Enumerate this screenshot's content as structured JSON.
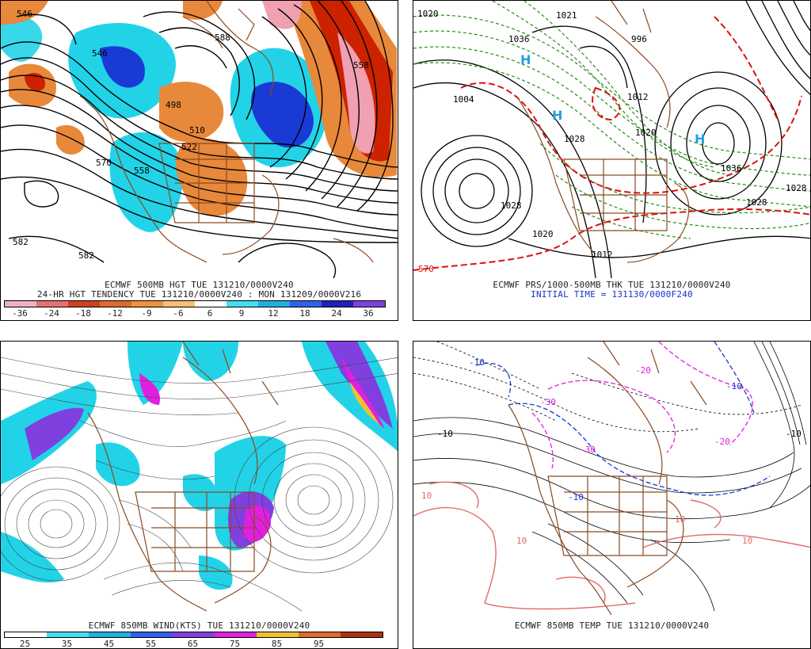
{
  "colors": {
    "coast": "#8a4a20",
    "contour": "#000000",
    "blue_fill": "#1a3ad6",
    "cyan_fill": "#22d3e8",
    "orange_fill": "#e8883a",
    "red_fill": "#cc2200",
    "green_dash": "#2a8a1a",
    "red_dash": "#dd1111",
    "magenta": "#e020e0",
    "purple": "#8040e0",
    "salmon": "#e06a6a"
  },
  "panel1": {
    "line1": "ECMWF 500MB HGT TUE 131210/0000V240",
    "line2": "24-HR HGT TENDENCY TUE 131210/0000V240 : MON 131209/0000V216",
    "colorbar_labels": [
      "-36",
      "-24",
      "-18",
      "-12",
      "-9",
      "-6",
      "6",
      "9",
      "12",
      "18",
      "24",
      "36"
    ],
    "colorbar_colors": [
      "#f0b0c0",
      "#e87070",
      "#d04020",
      "#e06a2a",
      "#f0903a",
      "#f8c070",
      "#ffffff",
      "#40e0f0",
      "#20b0e0",
      "#3060f0",
      "#2020c0",
      "#8040e0"
    ],
    "contour_labels": [
      "546",
      "546",
      "588",
      "558",
      "498",
      "510",
      "522",
      "570",
      "558",
      "582",
      "582"
    ]
  },
  "panel2": {
    "line1": "ECMWF PRS/1000-500MB THK TUE 131210/0000V240",
    "line2": "INITIAL TIME = 131130/0000F240",
    "contour_labels": [
      "1020",
      "1021",
      "996",
      "1036",
      "1004",
      "1012",
      "1020",
      "1028",
      "1028",
      "1036",
      "1028",
      "1028",
      "1012",
      "570",
      "1020"
    ],
    "high_markers": [
      "H",
      "H",
      "H"
    ]
  },
  "panel3": {
    "line1": "ECMWF 850MB WIND(KTS) TUE 131210/0000V240",
    "colorbar_labels": [
      "25",
      "35",
      "45",
      "55",
      "65",
      "75",
      "85",
      "95"
    ],
    "colorbar_colors": [
      "#ffffff",
      "#40e0f0",
      "#20b0e0",
      "#3060f0",
      "#8040e0",
      "#e020e0",
      "#f0c030",
      "#e06a2a",
      "#b03010"
    ]
  },
  "panel4": {
    "line1": "ECMWF 850MB TEMP TUE 131210/0000V240",
    "contour_labels": [
      "-10",
      "-10",
      "-10",
      "-20",
      "-30",
      "-30",
      "-20",
      "10",
      "10",
      "10",
      "10",
      "-10",
      "-10"
    ]
  }
}
